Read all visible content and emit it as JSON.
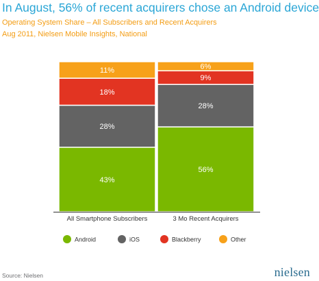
{
  "header": {
    "title": "In August, 56% of recent acquirers chose an Android device",
    "subtitle1": "Operating System Share – All Subscribers and Recent Acquirers",
    "subtitle2": "Aug 2011, Nielsen Mobile Insights, National"
  },
  "footer": {
    "source": "Source: Nielsen",
    "logo": "nielsen"
  },
  "chart_data": {
    "type": "bar",
    "stacked": true,
    "normalized": true,
    "categories": [
      "All Smartphone Subscribers",
      "3 Mo Recent Acquirers"
    ],
    "series": [
      {
        "name": "Android",
        "values": [
          43,
          56
        ],
        "labels": [
          "43%",
          "56%"
        ],
        "color": "#7ab800"
      },
      {
        "name": "iOS",
        "values": [
          28,
          28
        ],
        "labels": [
          "28%",
          "28%"
        ],
        "color": "#636363"
      },
      {
        "name": "Blackberry",
        "values": [
          18,
          9
        ],
        "labels": [
          "18%",
          "9%"
        ],
        "color": "#e23422"
      },
      {
        "name": "Other",
        "values": [
          11,
          6
        ],
        "labels": [
          "11%",
          "6%"
        ],
        "color": "#f7a11a"
      }
    ],
    "ylim": [
      0,
      100
    ],
    "grid": false,
    "legend": "bottom"
  }
}
